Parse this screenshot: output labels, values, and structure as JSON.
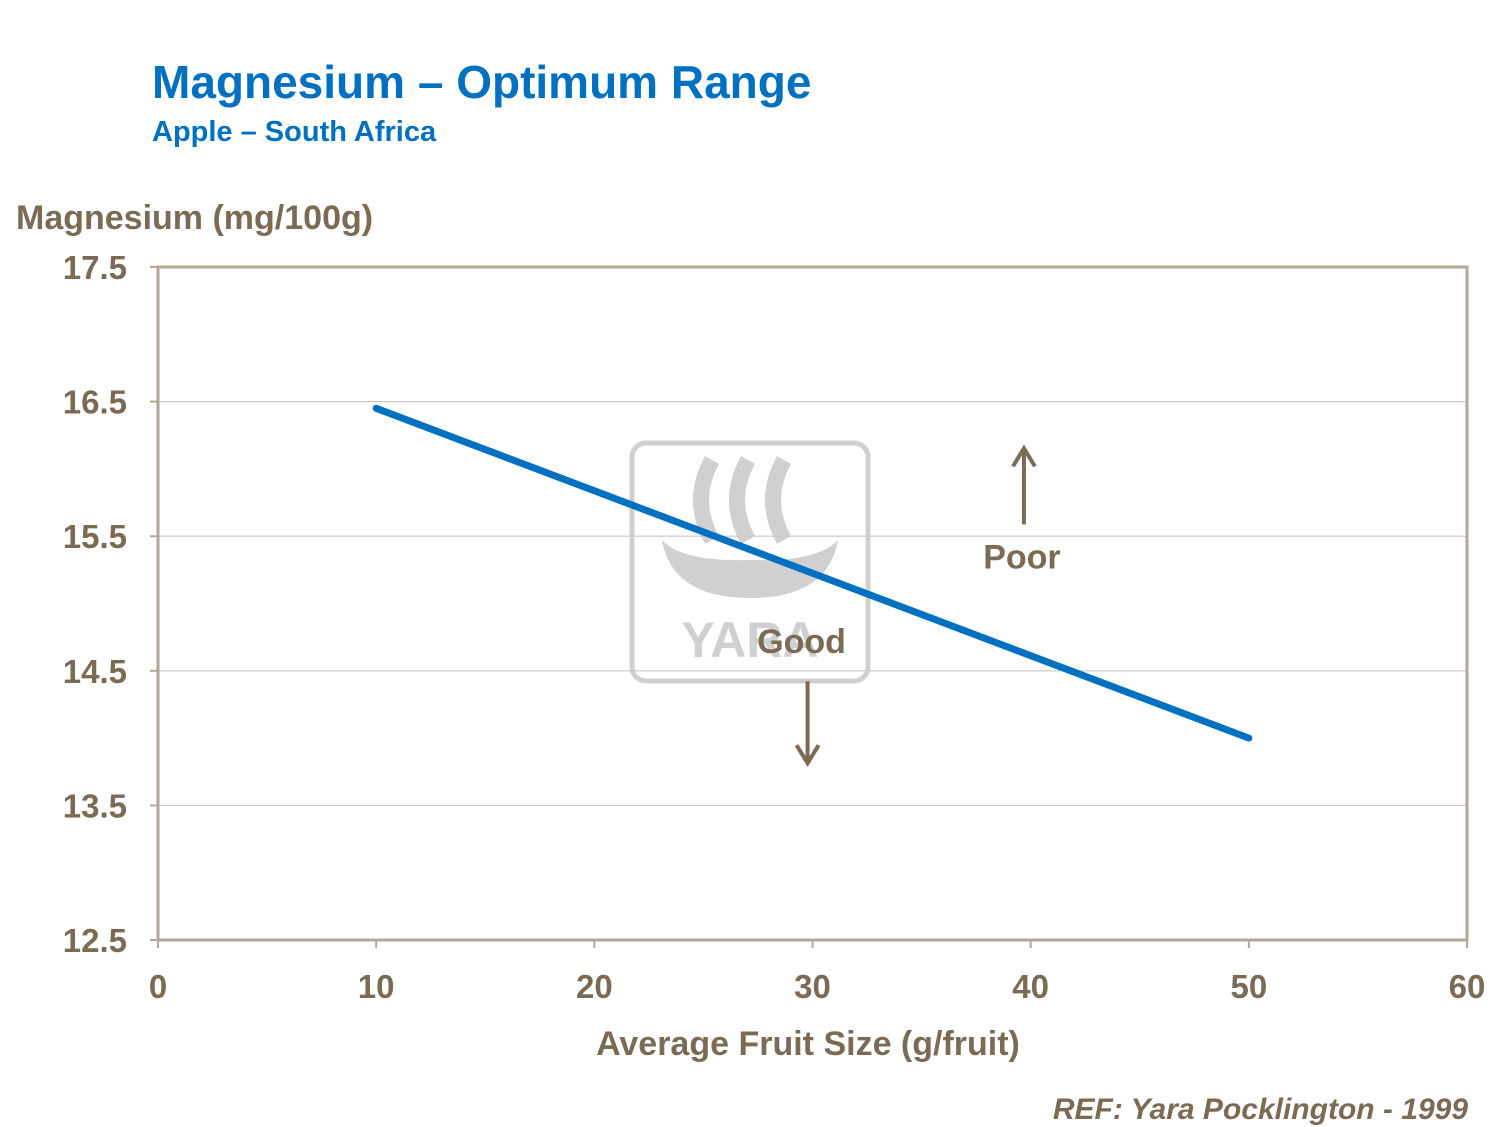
{
  "header": {
    "title": "Magnesium – Optimum Range",
    "subtitle": "Apple – South Africa"
  },
  "reference": "REF: Yara Pocklington  - 1999",
  "watermark": {
    "text": "YARA",
    "icon": "yara-viking-ship-logo"
  },
  "colors": {
    "title": "#0070C0",
    "line": "#0070C0",
    "text": "#7B6B55",
    "axis": "#B5A796",
    "grid": "#C8C8C8",
    "watermark": "#D0D0D0"
  },
  "chart_data": {
    "type": "line",
    "title": "Magnesium – Optimum Range",
    "subtitle": "Apple – South Africa",
    "xlabel": "Average Fruit Size (g/fruit)",
    "ylabel": "Magnesium (mg/100g)",
    "xlim": [
      0,
      60
    ],
    "ylim": [
      12.5,
      17.5
    ],
    "x_ticks": [
      "0",
      "10",
      "20",
      "30",
      "40",
      "50",
      "60"
    ],
    "y_ticks": [
      "12.5",
      "13.5",
      "14.5",
      "15.5",
      "16.5",
      "17.5"
    ],
    "grid": true,
    "series": [
      {
        "x": [
          10,
          50
        ],
        "y": [
          16.45,
          14.0
        ]
      }
    ],
    "annotations": [
      {
        "text": "Poor",
        "x": 39.6,
        "y": 15.35,
        "arrow": "up"
      },
      {
        "text": "Good",
        "x": 29.5,
        "y": 14.72,
        "arrow": "down"
      }
    ]
  }
}
